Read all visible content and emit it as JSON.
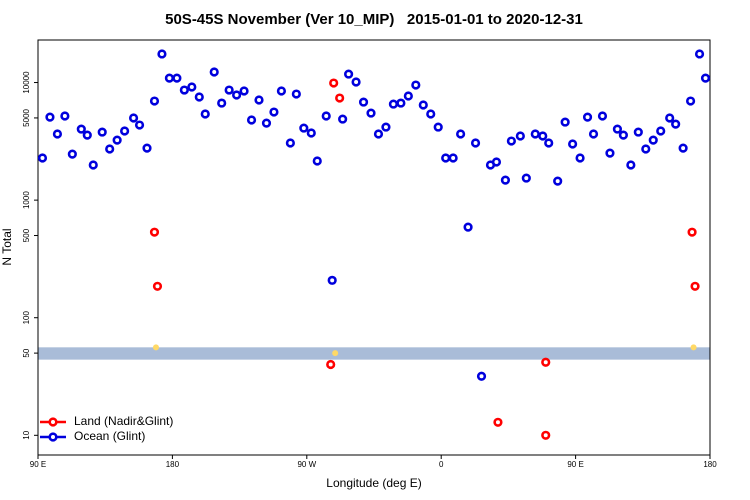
{
  "chart_data": {
    "type": "scatter",
    "title": "50S-45S November (Ver 10_MIP)   2015-01-01 to 2020-12-31",
    "xlabel": "Longitude (deg E)",
    "ylabel": "N Total",
    "log_y": true,
    "xlim": [
      90,
      540
    ],
    "xticks": [
      {
        "value": 90,
        "label": "90 E"
      },
      180,
      {
        "value": 270,
        "label": "90 W"
      },
      {
        "value": 360,
        "label": "0"
      },
      {
        "value": 450,
        "label": "90 E"
      },
      {
        "value": 540,
        "label": "180"
      }
    ],
    "ylim": [
      6.8,
      23000
    ],
    "yticks": [
      10,
      50,
      100,
      500,
      1000,
      5000,
      10000
    ],
    "hband": [
      44,
      56
    ],
    "hband_color": "#a9bcd8",
    "legend": "lower left",
    "series": [
      {
        "name": "Land (Nadir&Glint)",
        "color": "#ff0000",
        "x": [
          168,
          170,
          288,
          292,
          286,
          398,
          430,
          430,
          528,
          530
        ],
        "values": [
          534,
          185,
          9900,
          7380,
          40,
          12.9,
          41.8,
          10,
          534,
          185
        ]
      },
      {
        "name": "Ocean (Glint)",
        "color": "#0000dd",
        "x": [
          93,
          98,
          103,
          108,
          113,
          119,
          123,
          127,
          133,
          138,
          143,
          148,
          154,
          158,
          163,
          168,
          173,
          178,
          183,
          188,
          193,
          198,
          202,
          208,
          213,
          218,
          223,
          228,
          233,
          238,
          243,
          248,
          253,
          259,
          263,
          268,
          273,
          277,
          283,
          287,
          294,
          298,
          303,
          308,
          313,
          318,
          323,
          328,
          333,
          338,
          343,
          348,
          353,
          358,
          363,
          368,
          373,
          378,
          383,
          387,
          393,
          397,
          403,
          407,
          413,
          417,
          423,
          428,
          432,
          438,
          443,
          448,
          453,
          458,
          462,
          468,
          473,
          478,
          482,
          487,
          492,
          497,
          502,
          507,
          513,
          517,
          522,
          527,
          533,
          537
        ],
        "values": [
          2280,
          5080,
          3650,
          5190,
          2460,
          4020,
          3570,
          1990,
          3790,
          2720,
          3240,
          3870,
          4990,
          4350,
          2770,
          6960,
          17500,
          10900,
          10900,
          8630,
          9160,
          7530,
          5400,
          12300,
          6690,
          8630,
          7830,
          8470,
          4800,
          7100,
          4520,
          5610,
          8470,
          3060,
          7980,
          4100,
          3720,
          2150,
          5190,
          208,
          4890,
          11800,
          10100,
          6820,
          5500,
          3650,
          4180,
          6560,
          6690,
          7680,
          9520,
          6440,
          5400,
          4180,
          2280,
          2280,
          3650,
          589,
          3060,
          31.8,
          1990,
          2110,
          1480,
          3180,
          3510,
          1540,
          3650,
          3510,
          3060,
          1450,
          4610,
          3000,
          2280,
          5080,
          3650,
          5190,
          2510,
          4020,
          3570,
          1990,
          3790,
          2720,
          3240,
          3870,
          4990,
          4430,
          2770,
          6960,
          17500,
          10900
        ]
      },
      {
        "color": "#ffd966",
        "x": [
          169,
          289,
          529
        ],
        "values": [
          56,
          50,
          56
        ]
      }
    ]
  }
}
